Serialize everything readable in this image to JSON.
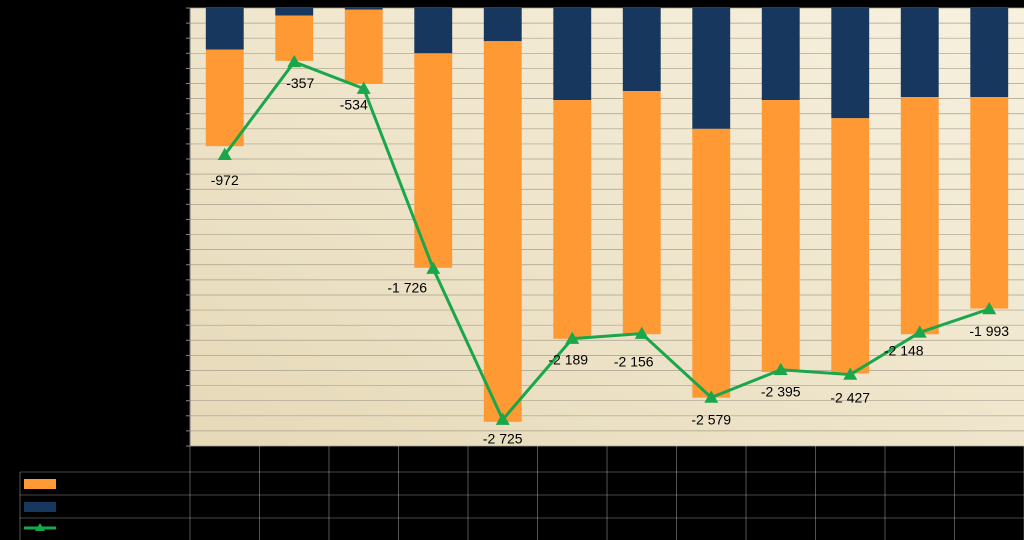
{
  "colors": {
    "background": "#000000",
    "plot_bg_light": "#f7f1df",
    "plot_bg_dark": "#e6d9b8",
    "gridline": "#a8a08e",
    "series_orange": "#ff9933",
    "series_navy": "#17375e",
    "series_green": "#1aa64a"
  },
  "chart_data": {
    "type": "bar",
    "stacking": "stacked",
    "title": "",
    "xlabel": "",
    "ylabel": "",
    "categories": [
      "",
      "",
      "",
      "",
      "",
      "",
      "",
      "",
      "",
      "",
      "",
      ""
    ],
    "ylim": [
      -2900,
      0
    ],
    "grid": true,
    "legend": "data-table-bottom",
    "series": [
      {
        "kind": "bar",
        "color": "#ff9933",
        "values": [
          -640,
          -300,
          -490,
          -1420,
          -2520,
          -1580,
          -1610,
          -1780,
          -1800,
          -1690,
          -1570,
          -1400
        ]
      },
      {
        "kind": "bar",
        "color": "#17375e",
        "values": [
          -275,
          -50,
          -10,
          -300,
          -220,
          -610,
          -550,
          -800,
          -610,
          -730,
          -590,
          -590
        ]
      },
      {
        "kind": "line",
        "color": "#1aa64a",
        "marker": "triangle",
        "values": [
          -972,
          -357,
          -534,
          -1726,
          -2725,
          -2189,
          -2156,
          -2579,
          -2395,
          -2427,
          -2148,
          -1993
        ],
        "labels": [
          "-972",
          "-357",
          "-534",
          "-1 726",
          "-2 725",
          "-2 189",
          "-2 156",
          "-2 579",
          "-2 395",
          "-2 427",
          "-2 148",
          "-1 993"
        ]
      }
    ]
  }
}
